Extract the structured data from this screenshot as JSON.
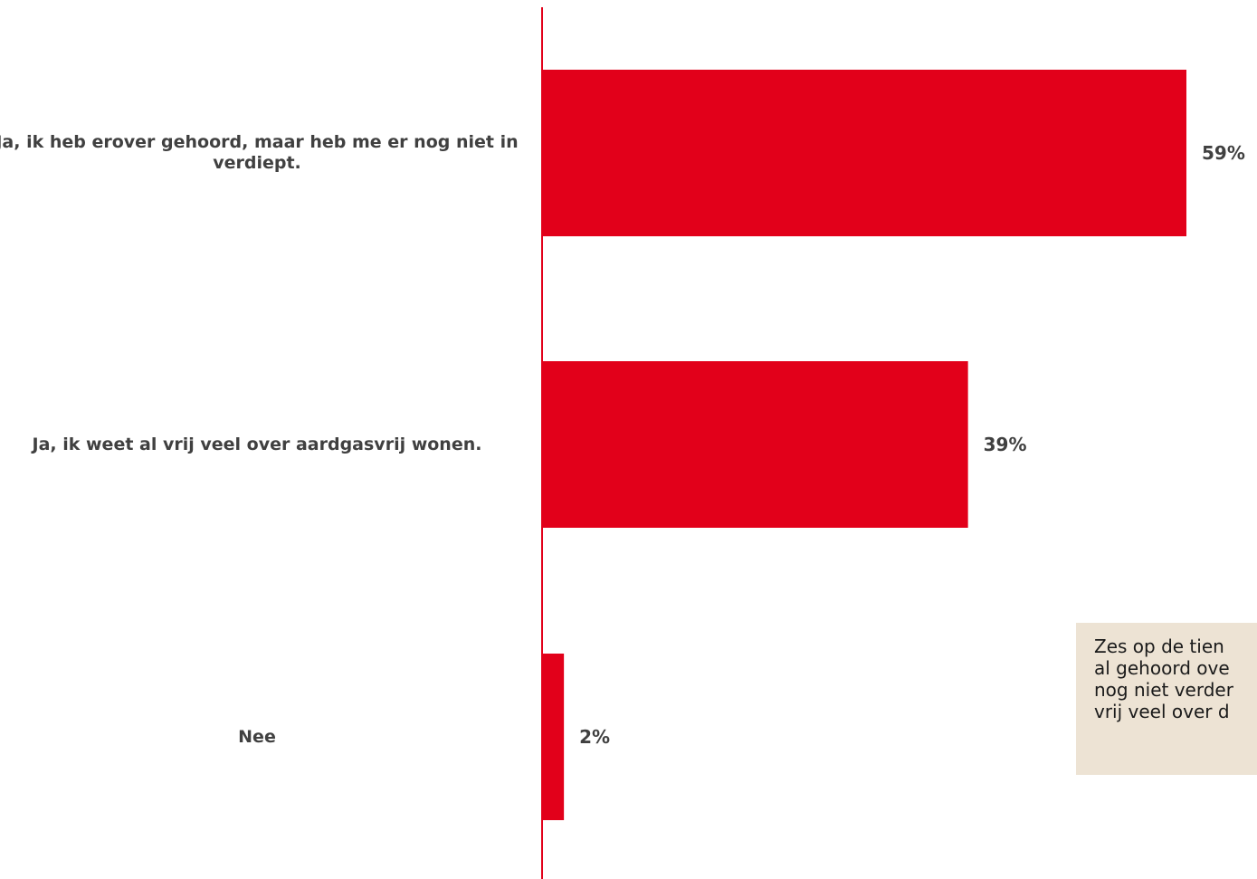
{
  "colors": {
    "bar": "#e2001a",
    "axis": "#e2001a",
    "text": "#404040",
    "note_bg": "#ede3d4"
  },
  "chart_data": {
    "type": "bar",
    "orientation": "horizontal",
    "categories": [
      "Ja, ik heb erover gehoord, maar heb me er nog niet in verdiept.",
      "Ja, ik weet al vrij veel over aardgasvrij wonen.",
      "Nee"
    ],
    "values": [
      59,
      39,
      2
    ],
    "value_labels": [
      "59%",
      "39%",
      "2%"
    ],
    "xlim": [
      0,
      62
    ],
    "grid": false,
    "legend": "none"
  },
  "note": {
    "lines": [
      "Zes op de tien",
      "al gehoord ove",
      "nog niet verder",
      "vrij veel over d"
    ]
  }
}
